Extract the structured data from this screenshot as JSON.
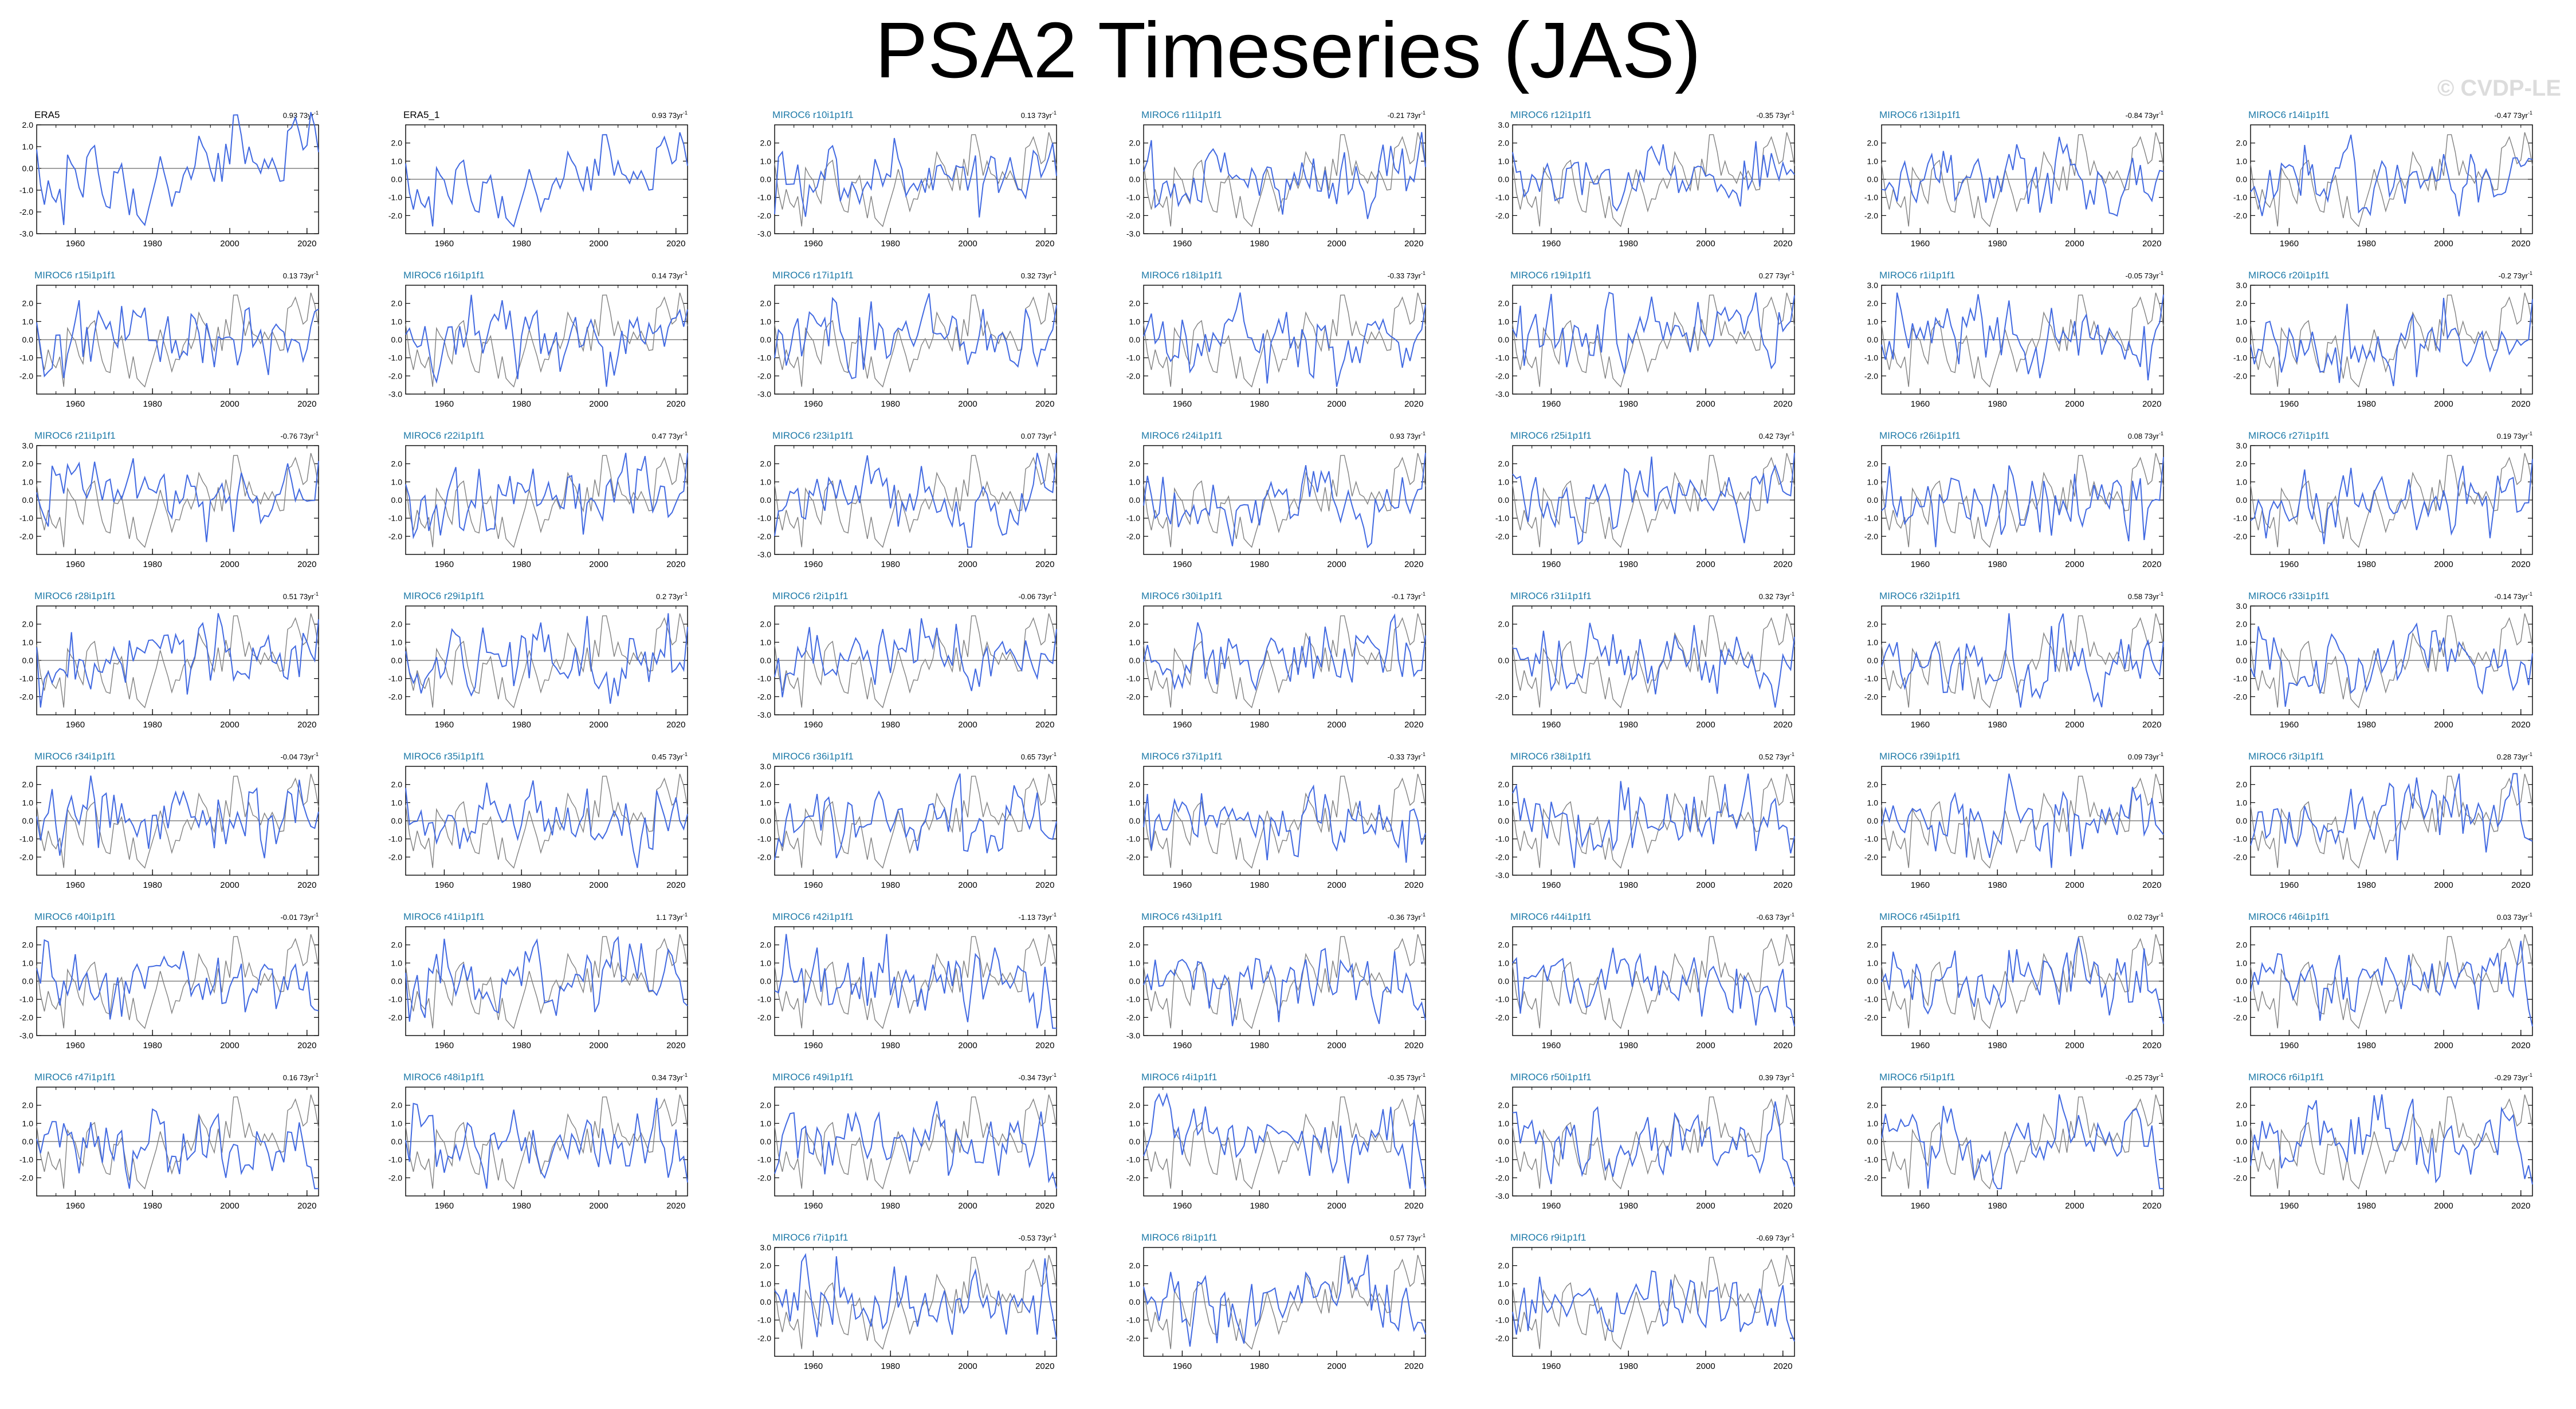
{
  "title": "PSA2 Timeseries (JAS)",
  "copyright": "© CVDP-LE",
  "colors": {
    "model_line": "#4169e1",
    "obs_line": "#808080",
    "obs_line_dark": "#000000",
    "panel_title_model": "#1e7aa8",
    "panel_title_obs": "#000000",
    "axis": "#000000",
    "zero_line": "#000000"
  },
  "chart_data": [
    {
      "type": "line",
      "title": "ERA5",
      "trend": "0.93",
      "y_ticks": [
        2.0,
        1.0,
        0.0,
        -1.0,
        -2.0,
        -3.0
      ],
      "ylim": [
        -3,
        2
      ],
      "observation": true
    },
    {
      "type": "line",
      "title": "ERA5_1",
      "trend": "0.93",
      "y_ticks": [
        2.0,
        1.0,
        0.0,
        -1.0,
        -2.0
      ],
      "ylim": [
        -3,
        3
      ],
      "observation": true
    },
    {
      "type": "line",
      "title": "MIROC6 r10i1p1f1",
      "trend": "0.13",
      "y_ticks": [
        2.0,
        1.0,
        0.0,
        -1.0,
        -2.0,
        -3.0
      ],
      "ylim": [
        -3,
        3
      ]
    },
    {
      "type": "line",
      "title": "MIROC6 r11i1p1f1",
      "trend": "-0.21",
      "y_ticks": [
        2.0,
        1.0,
        0.0,
        -1.0,
        -2.0,
        -3.0
      ],
      "ylim": [
        -3,
        3
      ]
    },
    {
      "type": "line",
      "title": "MIROC6 r12i1p1f1",
      "trend": "-0.35",
      "y_ticks": [
        3.0,
        2.0,
        1.0,
        0.0,
        -1.0,
        -2.0
      ],
      "ylim": [
        -3,
        3
      ]
    },
    {
      "type": "line",
      "title": "MIROC6 r13i1p1f1",
      "trend": "-0.84",
      "y_ticks": [
        2.0,
        1.0,
        0.0,
        -1.0,
        -2.0
      ],
      "ylim": [
        -3,
        3
      ]
    },
    {
      "type": "line",
      "title": "MIROC6 r14i1p1f1",
      "trend": "-0.47",
      "y_ticks": [
        2.0,
        1.0,
        0.0,
        -1.0,
        -2.0
      ],
      "ylim": [
        -3,
        3
      ]
    },
    {
      "type": "line",
      "title": "MIROC6 r15i1p1f1",
      "trend": "0.13",
      "y_ticks": [
        2.0,
        1.0,
        0.0,
        -1.0,
        -2.0
      ],
      "ylim": [
        -3,
        3
      ]
    },
    {
      "type": "line",
      "title": "MIROC6 r16i1p1f1",
      "trend": "0.14",
      "y_ticks": [
        2.0,
        1.0,
        0.0,
        -1.0,
        -2.0,
        -3.0
      ],
      "ylim": [
        -3,
        3
      ]
    },
    {
      "type": "line",
      "title": "MIROC6 r17i1p1f1",
      "trend": "0.32",
      "y_ticks": [
        2.0,
        1.0,
        0.0,
        -1.0,
        -2.0,
        -3.0
      ],
      "ylim": [
        -3,
        3
      ]
    },
    {
      "type": "line",
      "title": "MIROC6 r18i1p1f1",
      "trend": "-0.33",
      "y_ticks": [
        2.0,
        1.0,
        0.0,
        -1.0,
        -2.0
      ],
      "ylim": [
        -3,
        3
      ]
    },
    {
      "type": "line",
      "title": "MIROC6 r19i1p1f1",
      "trend": "0.27",
      "y_ticks": [
        2.0,
        1.0,
        0.0,
        -1.0,
        -2.0,
        -3.0
      ],
      "ylim": [
        -3,
        3
      ]
    },
    {
      "type": "line",
      "title": "MIROC6 r1i1p1f1",
      "trend": "-0.05",
      "y_ticks": [
        3.0,
        2.0,
        1.0,
        0.0,
        -1.0,
        -2.0
      ],
      "ylim": [
        -3,
        3
      ]
    },
    {
      "type": "line",
      "title": "MIROC6 r20i1p1f1",
      "trend": "-0.2",
      "y_ticks": [
        3.0,
        2.0,
        1.0,
        0.0,
        -1.0,
        -2.0
      ],
      "ylim": [
        -3,
        3
      ]
    },
    {
      "type": "line",
      "title": "MIROC6 r21i1p1f1",
      "trend": "-0.76",
      "y_ticks": [
        3.0,
        2.0,
        1.0,
        0.0,
        -1.0,
        -2.0
      ],
      "ylim": [
        -3,
        3
      ]
    },
    {
      "type": "line",
      "title": "MIROC6 r22i1p1f1",
      "trend": "0.47",
      "y_ticks": [
        2.0,
        1.0,
        0.0,
        -1.0,
        -2.0
      ],
      "ylim": [
        -3,
        3
      ]
    },
    {
      "type": "line",
      "title": "MIROC6 r23i1p1f1",
      "trend": "0.07",
      "y_ticks": [
        2.0,
        1.0,
        0.0,
        -1.0,
        -2.0,
        -3.0
      ],
      "ylim": [
        -3,
        3
      ]
    },
    {
      "type": "line",
      "title": "MIROC6 r24i1p1f1",
      "trend": "0.93",
      "y_ticks": [
        2.0,
        1.0,
        0.0,
        -1.0,
        -2.0
      ],
      "ylim": [
        -3,
        3
      ]
    },
    {
      "type": "line",
      "title": "MIROC6 r25i1p1f1",
      "trend": "0.42",
      "y_ticks": [
        2.0,
        1.0,
        0.0,
        -1.0,
        -2.0
      ],
      "ylim": [
        -3,
        3
      ]
    },
    {
      "type": "line",
      "title": "MIROC6 r26i1p1f1",
      "trend": "0.08",
      "y_ticks": [
        2.0,
        1.0,
        0.0,
        -1.0,
        -2.0
      ],
      "ylim": [
        -3,
        3
      ]
    },
    {
      "type": "line",
      "title": "MIROC6 r27i1p1f1",
      "trend": "0.19",
      "y_ticks": [
        3.0,
        2.0,
        1.0,
        0.0,
        -1.0,
        -2.0
      ],
      "ylim": [
        -3,
        3
      ]
    },
    {
      "type": "line",
      "title": "MIROC6 r28i1p1f1",
      "trend": "0.51",
      "y_ticks": [
        2.0,
        1.0,
        0.0,
        -1.0,
        -2.0
      ],
      "ylim": [
        -3,
        3
      ]
    },
    {
      "type": "line",
      "title": "MIROC6 r29i1p1f1",
      "trend": "0.2",
      "y_ticks": [
        2.0,
        1.0,
        0.0,
        -1.0,
        -2.0
      ],
      "ylim": [
        -3,
        3
      ]
    },
    {
      "type": "line",
      "title": "MIROC6 r2i1p1f1",
      "trend": "-0.06",
      "y_ticks": [
        2.0,
        1.0,
        0.0,
        -1.0,
        -2.0,
        -3.0
      ],
      "ylim": [
        -3,
        3
      ]
    },
    {
      "type": "line",
      "title": "MIROC6 r30i1p1f1",
      "trend": "-0.1",
      "y_ticks": [
        2.0,
        1.0,
        0.0,
        -1.0,
        -2.0
      ],
      "ylim": [
        -3,
        3
      ]
    },
    {
      "type": "line",
      "title": "MIROC6 r31i1p1f1",
      "trend": "0.32",
      "y_ticks": [
        2.0,
        0.0,
        -2.0
      ],
      "ylim": [
        -3,
        3
      ]
    },
    {
      "type": "line",
      "title": "MIROC6 r32i1p1f1",
      "trend": "0.58",
      "y_ticks": [
        2.0,
        1.0,
        0.0,
        -1.0,
        -2.0
      ],
      "ylim": [
        -3,
        3
      ]
    },
    {
      "type": "line",
      "title": "MIROC6 r33i1p1f1",
      "trend": "-0.14",
      "y_ticks": [
        3.0,
        2.0,
        1.0,
        0.0,
        -1.0,
        -2.0
      ],
      "ylim": [
        -3,
        3
      ]
    },
    {
      "type": "line",
      "title": "MIROC6 r34i1p1f1",
      "trend": "-0.04",
      "y_ticks": [
        2.0,
        1.0,
        0.0,
        -1.0,
        -2.0
      ],
      "ylim": [
        -3,
        3
      ]
    },
    {
      "type": "line",
      "title": "MIROC6 r35i1p1f1",
      "trend": "0.45",
      "y_ticks": [
        2.0,
        1.0,
        0.0,
        -1.0,
        -2.0
      ],
      "ylim": [
        -3,
        3
      ]
    },
    {
      "type": "line",
      "title": "MIROC6 r36i1p1f1",
      "trend": "0.65",
      "y_ticks": [
        3.0,
        2.0,
        1.0,
        0.0,
        -1.0,
        -2.0
      ],
      "ylim": [
        -3,
        3
      ]
    },
    {
      "type": "line",
      "title": "MIROC6 r37i1p1f1",
      "trend": "-0.33",
      "y_ticks": [
        2.0,
        1.0,
        0.0,
        -1.0,
        -2.0
      ],
      "ylim": [
        -3,
        3
      ]
    },
    {
      "type": "line",
      "title": "MIROC6 r38i1p1f1",
      "trend": "0.52",
      "y_ticks": [
        2.0,
        1.0,
        0.0,
        -1.0,
        -2.0,
        -3.0
      ],
      "ylim": [
        -3,
        3
      ]
    },
    {
      "type": "line",
      "title": "MIROC6 r39i1p1f1",
      "trend": "0.09",
      "y_ticks": [
        2.0,
        1.0,
        0.0,
        -1.0,
        -2.0
      ],
      "ylim": [
        -3,
        3
      ]
    },
    {
      "type": "line",
      "title": "MIROC6 r3i1p1f1",
      "trend": "0.28",
      "y_ticks": [
        2.0,
        1.0,
        0.0,
        -1.0,
        -2.0
      ],
      "ylim": [
        -3,
        3
      ]
    },
    {
      "type": "line",
      "title": "MIROC6 r40i1p1f1",
      "trend": "-0.01",
      "y_ticks": [
        2.0,
        1.0,
        0.0,
        -1.0,
        -2.0,
        -3.0
      ],
      "ylim": [
        -3,
        3
      ]
    },
    {
      "type": "line",
      "title": "MIROC6 r41i1p1f1",
      "trend": "1.1",
      "y_ticks": [
        2.0,
        1.0,
        0.0,
        -1.0,
        -2.0
      ],
      "ylim": [
        -3,
        3
      ]
    },
    {
      "type": "line",
      "title": "MIROC6 r42i1p1f1",
      "trend": "-1.13",
      "y_ticks": [
        2.0,
        1.0,
        0.0,
        -1.0,
        -2.0
      ],
      "ylim": [
        -3,
        3
      ]
    },
    {
      "type": "line",
      "title": "MIROC6 r43i1p1f1",
      "trend": "-0.36",
      "y_ticks": [
        2.0,
        1.0,
        0.0,
        -1.0,
        -2.0,
        -3.0
      ],
      "ylim": [
        -3,
        3
      ]
    },
    {
      "type": "line",
      "title": "MIROC6 r44i1p1f1",
      "trend": "-0.63",
      "y_ticks": [
        2.0,
        1.0,
        0.0,
        -1.0,
        -2.0
      ],
      "ylim": [
        -3,
        3
      ]
    },
    {
      "type": "line",
      "title": "MIROC6 r45i1p1f1",
      "trend": "0.02",
      "y_ticks": [
        2.0,
        1.0,
        0.0,
        -1.0,
        -2.0
      ],
      "ylim": [
        -3,
        3
      ]
    },
    {
      "type": "line",
      "title": "MIROC6 r46i1p1f1",
      "trend": "0.03",
      "y_ticks": [
        2.0,
        1.0,
        0.0,
        -1.0,
        -2.0
      ],
      "ylim": [
        -3,
        3
      ]
    },
    {
      "type": "line",
      "title": "MIROC6 r47i1p1f1",
      "trend": "0.16",
      "y_ticks": [
        2.0,
        1.0,
        0.0,
        -1.0,
        -2.0
      ],
      "ylim": [
        -3,
        3
      ]
    },
    {
      "type": "line",
      "title": "MIROC6 r48i1p1f1",
      "trend": "0.34",
      "y_ticks": [
        2.0,
        1.0,
        0.0,
        -1.0,
        -2.0
      ],
      "ylim": [
        -3,
        3
      ]
    },
    {
      "type": "line",
      "title": "MIROC6 r49i1p1f1",
      "trend": "-0.34",
      "y_ticks": [
        2.0,
        1.0,
        0.0,
        -1.0,
        -2.0
      ],
      "ylim": [
        -3,
        3
      ]
    },
    {
      "type": "line",
      "title": "MIROC6 r4i1p1f1",
      "trend": "-0.35",
      "y_ticks": [
        2.0,
        1.0,
        0.0,
        -1.0,
        -2.0
      ],
      "ylim": [
        -3,
        3
      ]
    },
    {
      "type": "line",
      "title": "MIROC6 r50i1p1f1",
      "trend": "0.39",
      "y_ticks": [
        2.0,
        1.0,
        0.0,
        -1.0,
        -2.0,
        -3.0
      ],
      "ylim": [
        -3,
        3
      ]
    },
    {
      "type": "line",
      "title": "MIROC6 r5i1p1f1",
      "trend": "-0.25",
      "y_ticks": [
        2.0,
        1.0,
        0.0,
        -1.0,
        -2.0
      ],
      "ylim": [
        -3,
        3
      ]
    },
    {
      "type": "line",
      "title": "MIROC6 r6i1p1f1",
      "trend": "-0.29",
      "y_ticks": [
        2.0,
        1.0,
        0.0,
        -1.0,
        -2.0
      ],
      "ylim": [
        -3,
        3
      ]
    },
    {
      "type": "line",
      "title": "MIROC6 r7i1p1f1",
      "trend": "-0.53",
      "y_ticks": [
        3.0,
        2.0,
        1.0,
        0.0,
        -1.0,
        -2.0
      ],
      "ylim": [
        -3,
        3
      ]
    },
    {
      "type": "line",
      "title": "MIROC6 r8i1p1f1",
      "trend": "0.57",
      "y_ticks": [
        2.0,
        1.0,
        0.0,
        -1.0,
        -2.0
      ],
      "ylim": [
        -3,
        3
      ]
    },
    {
      "type": "line",
      "title": "MIROC6 r9i1p1f1",
      "trend": "-0.69",
      "y_ticks": [
        2.0,
        1.0,
        0.0,
        -1.0,
        -2.0
      ],
      "ylim": [
        -3,
        3
      ]
    }
  ],
  "x_ticks": [
    "1960",
    "1980",
    "2000",
    "2020"
  ],
  "x_range": [
    1950,
    2023
  ],
  "trend_unit": "73yr",
  "trend_exponent": "-1"
}
